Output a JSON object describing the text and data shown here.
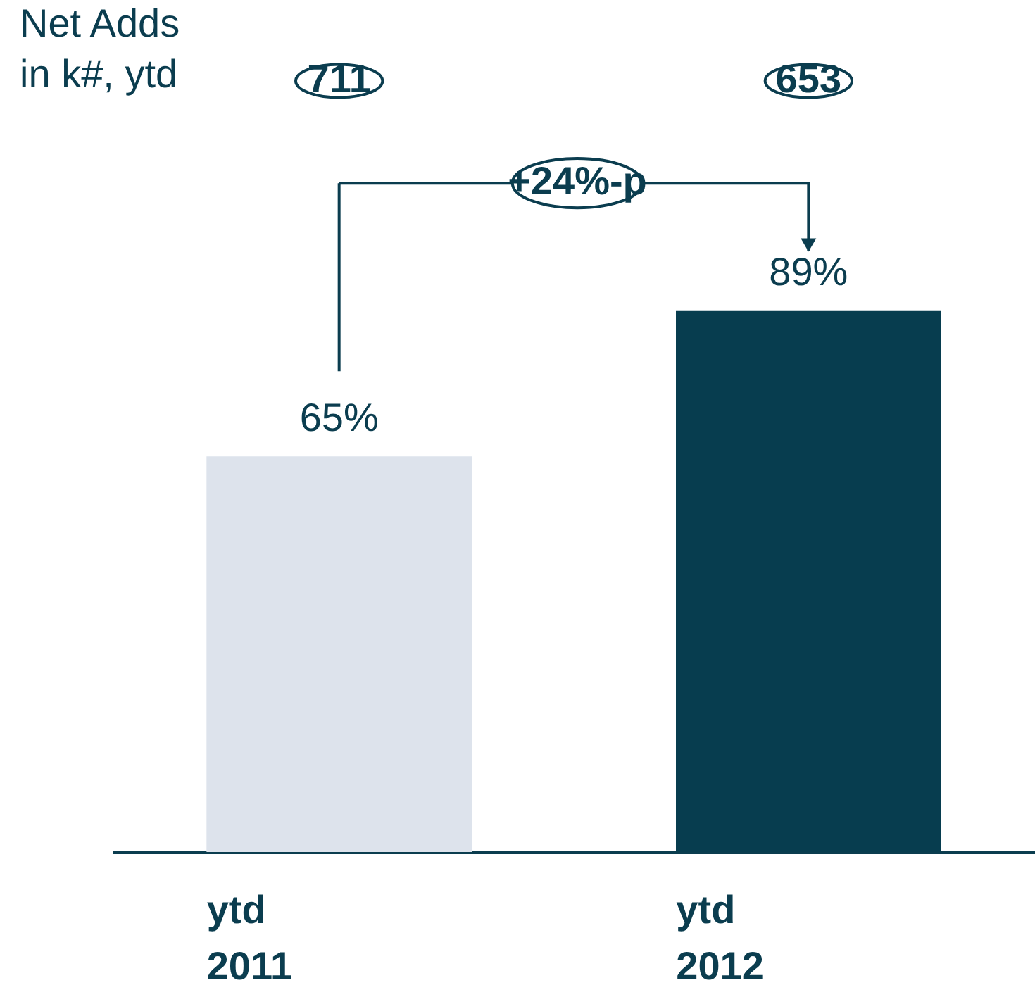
{
  "chart_data": {
    "type": "bar",
    "categories": [
      "ytd 2011",
      "ytd 2012"
    ],
    "values": [
      65,
      89
    ],
    "colors": [
      "#dde3ec",
      "#073d4f"
    ],
    "value_labels": [
      "65%",
      "89%"
    ],
    "ylim": [
      0,
      140
    ],
    "annotations": [
      "Net Adds in k#, ytd",
      "711",
      "653",
      "+24%-p"
    ]
  }
}
